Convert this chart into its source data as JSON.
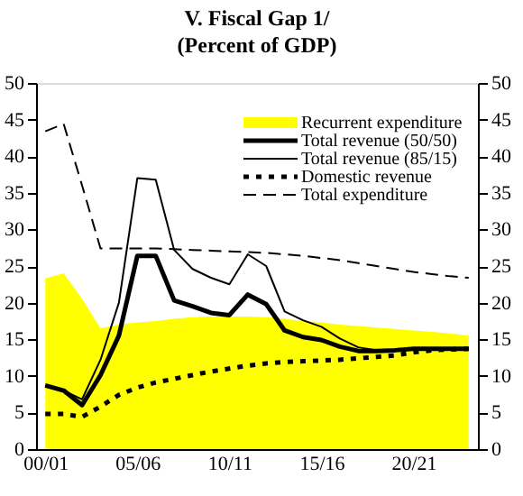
{
  "chart_data": {
    "type": "line",
    "title": "V. Fiscal Gap 1/",
    "subtitle": "(Percent of GDP)",
    "categories": [
      "00/01",
      null,
      null,
      null,
      null,
      "05/06",
      null,
      null,
      null,
      null,
      "10/11",
      null,
      null,
      null,
      null,
      "15/16",
      null,
      null,
      null,
      null,
      "20/21",
      null,
      null,
      null
    ],
    "series": [
      {
        "name": "Recurrent expenditure",
        "type": "area",
        "color": "#ffff00",
        "values": [
          23.3,
          24.0,
          20.5,
          16.5,
          17.0,
          17.3,
          17.5,
          17.8,
          18.0,
          18.1,
          18.1,
          18.1,
          18.0,
          17.8,
          17.5,
          17.3,
          17.0,
          16.8,
          16.6,
          16.4,
          16.2,
          16.0,
          15.8,
          15.5
        ]
      },
      {
        "name": "Total revenue (50/50)",
        "color": "#000000",
        "line_style": "solid",
        "values": [
          8.7,
          8.0,
          6.0,
          10.1,
          15.5,
          26.4,
          26.4,
          20.3,
          19.5,
          18.6,
          18.3,
          21.1,
          19.8,
          16.2,
          15.3,
          14.9,
          14.0,
          13.4,
          13.4,
          13.5,
          13.7,
          13.7,
          13.7,
          13.7
        ]
      },
      {
        "name": "Total revenue (85/15)",
        "color": "#000000",
        "line_style": "solid",
        "values": [
          8.7,
          8.0,
          6.8,
          12.2,
          20.0,
          37.0,
          36.8,
          27.2,
          24.6,
          23.4,
          22.5,
          26.6,
          25.0,
          18.8,
          17.6,
          16.7,
          15.1,
          13.9,
          13.5,
          13.4,
          13.8,
          13.7,
          13.7,
          13.7
        ]
      },
      {
        "name": "Domestic revenue",
        "color": "#000000",
        "line_style": "dotted",
        "values": [
          4.8,
          4.8,
          4.4,
          5.8,
          7.4,
          8.4,
          9.1,
          9.6,
          10.1,
          10.6,
          11.0,
          11.4,
          11.7,
          11.9,
          12.0,
          12.1,
          12.2,
          12.4,
          12.6,
          12.8,
          13.2,
          13.5,
          13.6,
          13.7
        ]
      },
      {
        "name": "Total expenditure",
        "color": "#000000",
        "line_style": "dashed",
        "values": [
          43.4,
          44.4,
          36.0,
          27.4,
          27.4,
          27.4,
          27.4,
          27.3,
          27.2,
          27.1,
          27.0,
          26.9,
          26.8,
          26.6,
          26.4,
          26.1,
          25.8,
          25.4,
          25.0,
          24.6,
          24.2,
          23.9,
          23.6,
          23.4
        ]
      }
    ],
    "ylim": [
      0,
      50
    ],
    "yticks": [
      0,
      5,
      10,
      15,
      20,
      25,
      30,
      35,
      40,
      45,
      50
    ],
    "y2lim": [
      0,
      50
    ],
    "y2ticks": [
      0,
      5,
      10,
      15,
      20,
      25,
      30,
      35,
      40,
      45,
      50
    ],
    "grid": false,
    "legend": "top right"
  }
}
